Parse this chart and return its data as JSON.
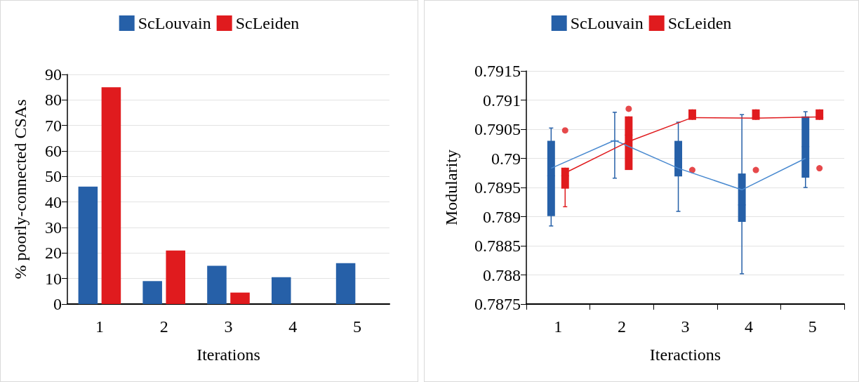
{
  "chart_data": [
    {
      "type": "bar",
      "xlabel": "Iterations",
      "ylabel": "% poorly-connected CSAs",
      "categories": [
        "1",
        "2",
        "3",
        "4",
        "5"
      ],
      "series": [
        {
          "name": "ScLouvain",
          "color": "#2660a8",
          "values": [
            46,
            9,
            15,
            10.5,
            16
          ]
        },
        {
          "name": "ScLeiden",
          "color": "#e01b1e",
          "values": [
            85,
            21,
            4.5,
            0,
            0
          ]
        }
      ],
      "ylim": [
        0,
        90
      ],
      "yticks": [
        0,
        10,
        20,
        30,
        40,
        50,
        60,
        70,
        80,
        90
      ],
      "grid": "y",
      "legend": "top"
    },
    {
      "type": "box",
      "xlabel": "Iteractions",
      "ylabel": "Modularity",
      "categories": [
        "1",
        "2",
        "3",
        "4",
        "5"
      ],
      "series": [
        {
          "name": "ScLouvain",
          "color": "#2660a8",
          "boxes": [
            {
              "low": 0.78884,
              "q1": 0.78901,
              "median": 0.7897,
              "q3": 0.7903,
              "high": 0.79052
            },
            {
              "low": 0.78966,
              "q1": 0.7903,
              "median": 0.7903,
              "q3": 0.7903,
              "high": 0.79079
            },
            {
              "low": 0.78909,
              "q1": 0.78969,
              "median": 0.79,
              "q3": 0.7903,
              "high": 0.79062
            },
            {
              "low": 0.78802,
              "q1": 0.78891,
              "median": 0.7892,
              "q3": 0.78974,
              "high": 0.79075
            },
            {
              "low": 0.7895,
              "q1": 0.78967,
              "median": 0.7902,
              "q3": 0.79072,
              "high": 0.7908
            }
          ]
        },
        {
          "name": "ScLeiden",
          "color": "#e01b1e",
          "boxes": [
            {
              "low": 0.78917,
              "q1": 0.78948,
              "median": 0.7897,
              "q3": 0.78984,
              "high": 0.78984,
              "outliers": [
                0.79048
              ]
            },
            {
              "low": 0.7898,
              "q1": 0.7898,
              "median": 0.7904,
              "q3": 0.79072,
              "high": 0.79072,
              "outliers": [
                0.79085
              ]
            },
            {
              "low": 0.79066,
              "q1": 0.79066,
              "median": 0.7907,
              "q3": 0.79084,
              "high": 0.79084,
              "outliers": [
                0.7898
              ]
            },
            {
              "low": 0.79066,
              "q1": 0.79066,
              "median": 0.7907,
              "q3": 0.79084,
              "high": 0.79084,
              "outliers": [
                0.7898
              ]
            },
            {
              "low": 0.79066,
              "q1": 0.79066,
              "median": 0.7907,
              "q3": 0.79084,
              "high": 0.79084,
              "outliers": [
                0.78983
              ]
            }
          ]
        },
        {
          "type": "line",
          "color": "#4a8ad0",
          "x": [
            "1",
            "2",
            "3",
            "4",
            "5"
          ],
          "values": [
            0.78983,
            0.79031,
            0.78983,
            0.78946,
            0.79
          ]
        },
        {
          "type": "line",
          "color": "#e01b1e",
          "x": [
            "1",
            "2",
            "3",
            "4",
            "5"
          ],
          "values": [
            0.78975,
            0.79029,
            0.7907,
            0.79069,
            0.79071
          ]
        }
      ],
      "ylim": [
        0.7875,
        0.7915
      ],
      "yticks": [
        0.7875,
        0.788,
        0.7885,
        0.789,
        0.7895,
        0.79,
        0.7905,
        0.791,
        0.7915
      ],
      "grid": "y",
      "legend": "top",
      "marker": "none"
    }
  ]
}
